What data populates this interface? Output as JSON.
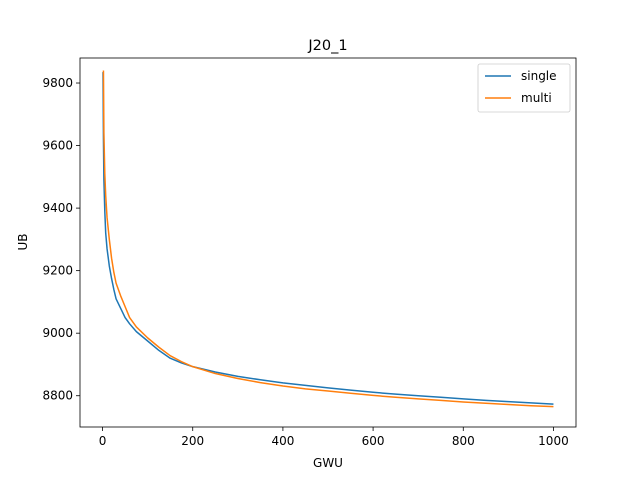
{
  "chart_data": {
    "type": "line",
    "title": "J20_1",
    "xlabel": "GWU",
    "ylabel": "UB",
    "xlim": [
      -50,
      1050
    ],
    "ylim": [
      8700,
      9880
    ],
    "xticks": [
      0,
      200,
      400,
      600,
      800,
      1000
    ],
    "yticks": [
      8800,
      9000,
      9200,
      9400,
      9600,
      9800
    ],
    "grid": false,
    "legend_position": "top-right",
    "series": [
      {
        "name": "single",
        "color": "#1f77b4",
        "x": [
          1,
          2,
          3,
          5,
          7,
          10,
          15,
          20,
          25,
          30,
          40,
          50,
          60,
          75,
          100,
          125,
          150,
          175,
          200,
          250,
          300,
          350,
          400,
          450,
          500,
          550,
          600,
          650,
          700,
          750,
          800,
          850,
          900,
          950,
          1000
        ],
        "y": [
          9835,
          9620,
          9490,
          9390,
          9320,
          9270,
          9215,
          9175,
          9140,
          9110,
          9080,
          9050,
          9030,
          9005,
          8975,
          8945,
          8920,
          8905,
          8893,
          8876,
          8862,
          8851,
          8841,
          8833,
          8825,
          8818,
          8811,
          8805,
          8800,
          8795,
          8790,
          8785,
          8781,
          8777,
          8773
        ]
      },
      {
        "name": "multi",
        "color": "#ff7f0e",
        "x": [
          2,
          3,
          5,
          7,
          10,
          15,
          20,
          25,
          30,
          40,
          50,
          60,
          75,
          100,
          125,
          150,
          175,
          200,
          250,
          300,
          350,
          400,
          450,
          500,
          550,
          600,
          650,
          700,
          750,
          800,
          850,
          900,
          950,
          1000
        ],
        "y": [
          9840,
          9640,
          9510,
          9440,
          9370,
          9300,
          9240,
          9195,
          9160,
          9120,
          9085,
          9050,
          9020,
          8985,
          8955,
          8928,
          8909,
          8893,
          8871,
          8855,
          8842,
          8831,
          8822,
          8815,
          8808,
          8801,
          8795,
          8790,
          8785,
          8780,
          8776,
          8772,
          8768,
          8765
        ]
      }
    ]
  }
}
